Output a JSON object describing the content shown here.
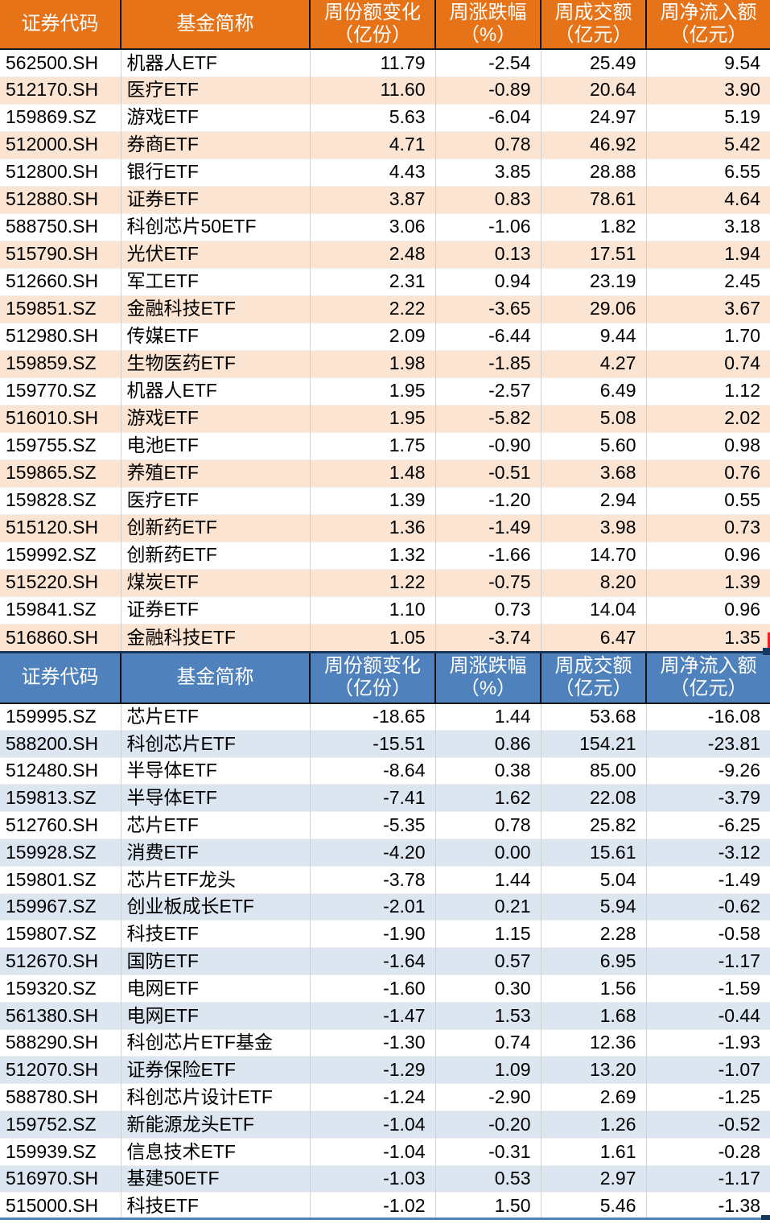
{
  "colors": {
    "inflow_header_bg": "#E77319",
    "inflow_row_alt_bg": "#FCE4D2",
    "outflow_header_bg": "#4F81BD",
    "outflow_row_alt_bg": "#DCE6F1",
    "header_text": "#FFFFFF",
    "body_text": "#000000",
    "header_divider": "#111111",
    "dark_navy_accent": "#17375E",
    "red_edge_marker": "#FF1A1A",
    "bottom_line": "#4F81BD"
  },
  "chart_data": [
    {
      "type": "table",
      "header_theme": "orange",
      "columns": [
        [
          "证券代码"
        ],
        [
          "基金简称"
        ],
        [
          "周份额变化",
          "（亿份）"
        ],
        [
          "周涨跌幅",
          "（%）"
        ],
        [
          "周成交额",
          "（亿元）"
        ],
        [
          "周净流入额",
          "（亿元）"
        ]
      ],
      "rows": [
        [
          "562500.SH",
          "机器人ETF",
          "11.79",
          "-2.54",
          "25.49",
          "9.54"
        ],
        [
          "512170.SH",
          "医疗ETF",
          "11.60",
          "-0.89",
          "20.64",
          "3.90"
        ],
        [
          "159869.SZ",
          "游戏ETF",
          "5.63",
          "-6.04",
          "24.97",
          "5.19"
        ],
        [
          "512000.SH",
          "券商ETF",
          "4.71",
          "0.78",
          "46.92",
          "5.42"
        ],
        [
          "512800.SH",
          "银行ETF",
          "4.43",
          "3.85",
          "28.88",
          "6.55"
        ],
        [
          "512880.SH",
          "证券ETF",
          "3.87",
          "0.83",
          "78.61",
          "4.64"
        ],
        [
          "588750.SH",
          "科创芯片50ETF",
          "3.06",
          "-1.06",
          "1.82",
          "3.18"
        ],
        [
          "515790.SH",
          "光伏ETF",
          "2.48",
          "0.13",
          "17.51",
          "1.94"
        ],
        [
          "512660.SH",
          "军工ETF",
          "2.31",
          "0.94",
          "23.19",
          "2.45"
        ],
        [
          "159851.SZ",
          "金融科技ETF",
          "2.22",
          "-3.65",
          "29.06",
          "3.67"
        ],
        [
          "512980.SH",
          "传媒ETF",
          "2.09",
          "-6.44",
          "9.44",
          "1.70"
        ],
        [
          "159859.SZ",
          "生物医药ETF",
          "1.98",
          "-1.85",
          "4.27",
          "0.74"
        ],
        [
          "159770.SZ",
          "机器人ETF",
          "1.95",
          "-2.57",
          "6.49",
          "1.12"
        ],
        [
          "516010.SH",
          "游戏ETF",
          "1.95",
          "-5.82",
          "5.08",
          "2.02"
        ],
        [
          "159755.SZ",
          "电池ETF",
          "1.75",
          "-0.90",
          "5.60",
          "0.98"
        ],
        [
          "159865.SZ",
          "养殖ETF",
          "1.48",
          "-0.51",
          "3.68",
          "0.76"
        ],
        [
          "159828.SZ",
          "医疗ETF",
          "1.39",
          "-1.20",
          "2.94",
          "0.55"
        ],
        [
          "515120.SH",
          "创新药ETF",
          "1.36",
          "-1.49",
          "3.98",
          "0.73"
        ],
        [
          "159992.SZ",
          "创新药ETF",
          "1.32",
          "-1.66",
          "14.70",
          "0.96"
        ],
        [
          "515220.SH",
          "煤炭ETF",
          "1.22",
          "-0.75",
          "8.20",
          "1.39"
        ],
        [
          "159841.SZ",
          "证券ETF",
          "1.10",
          "0.73",
          "14.04",
          "0.96"
        ],
        [
          "516860.SH",
          "金融科技ETF",
          "1.05",
          "-3.74",
          "6.47",
          "1.35"
        ]
      ]
    },
    {
      "type": "table",
      "header_theme": "blue",
      "columns": [
        [
          "证券代码"
        ],
        [
          "基金简称"
        ],
        [
          "周份额变化",
          "（亿份）"
        ],
        [
          "周涨跌幅",
          "（%）"
        ],
        [
          "周成交额",
          "（亿元）"
        ],
        [
          "周净流入额",
          "（亿元）"
        ]
      ],
      "rows": [
        [
          "159995.SZ",
          "芯片ETF",
          "-18.65",
          "1.44",
          "53.68",
          "-16.08"
        ],
        [
          "588200.SH",
          "科创芯片ETF",
          "-15.51",
          "0.86",
          "154.21",
          "-23.81"
        ],
        [
          "512480.SH",
          "半导体ETF",
          "-8.64",
          "0.38",
          "85.00",
          "-9.26"
        ],
        [
          "159813.SZ",
          "半导体ETF",
          "-7.41",
          "1.62",
          "22.08",
          "-3.79"
        ],
        [
          "512760.SH",
          "芯片ETF",
          "-5.35",
          "0.78",
          "25.82",
          "-6.25"
        ],
        [
          "159928.SZ",
          "消费ETF",
          "-4.20",
          "0.00",
          "15.61",
          "-3.12"
        ],
        [
          "159801.SZ",
          "芯片ETF龙头",
          "-3.78",
          "1.44",
          "5.04",
          "-1.49"
        ],
        [
          "159967.SZ",
          "创业板成长ETF",
          "-2.01",
          "0.21",
          "5.94",
          "-0.62"
        ],
        [
          "159807.SZ",
          "科技ETF",
          "-1.90",
          "1.15",
          "2.28",
          "-0.58"
        ],
        [
          "512670.SH",
          "国防ETF",
          "-1.64",
          "0.57",
          "6.95",
          "-1.17"
        ],
        [
          "159320.SZ",
          "电网ETF",
          "-1.60",
          "0.30",
          "1.56",
          "-1.59"
        ],
        [
          "561380.SH",
          "电网ETF",
          "-1.47",
          "1.53",
          "1.68",
          "-0.44"
        ],
        [
          "588290.SH",
          "科创芯片ETF基金",
          "-1.30",
          "0.74",
          "12.36",
          "-1.93"
        ],
        [
          "512070.SH",
          "证券保险ETF",
          "-1.29",
          "1.09",
          "13.20",
          "-1.07"
        ],
        [
          "588780.SH",
          "科创芯片设计ETF",
          "-1.24",
          "-2.90",
          "2.69",
          "-1.25"
        ],
        [
          "159752.SZ",
          "新能源龙头ETF",
          "-1.04",
          "-0.20",
          "1.26",
          "-0.52"
        ],
        [
          "159939.SZ",
          "信息技术ETF",
          "-1.04",
          "-0.31",
          "1.61",
          "-0.28"
        ],
        [
          "516970.SH",
          "基建50ETF",
          "-1.03",
          "0.53",
          "2.97",
          "-1.17"
        ],
        [
          "515000.SH",
          "科技ETF",
          "-1.02",
          "1.50",
          "5.46",
          "-1.38"
        ]
      ]
    }
  ]
}
